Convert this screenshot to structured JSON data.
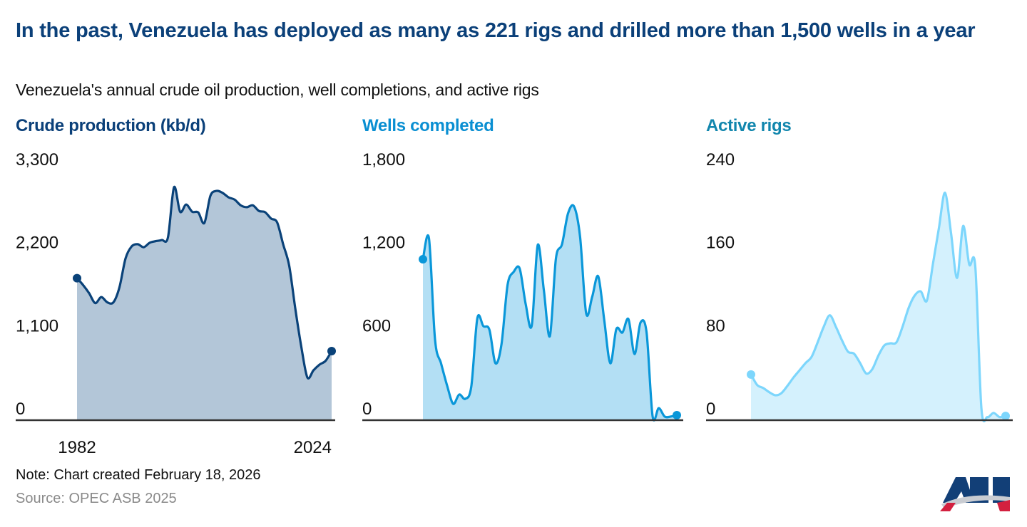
{
  "title": "In the past, Venezuela has deployed as many as 221 rigs and drilled more than 1,500 wells in a year",
  "subtitle": "Venezuela's annual crude oil production, well completions, and active rigs",
  "note": "Note: Chart created February 18, 2026",
  "source": "Source: OPEC ASB 2025",
  "logo_text": "API",
  "chart_data": [
    {
      "type": "area",
      "title": "Crude production (kb/d)",
      "title_color": "#0b4079",
      "line_color": "#0a4279",
      "fill_color": "#b3c6d8",
      "x_range": [
        1982,
        2024
      ],
      "x_tick_labels": [
        "1982",
        "2024"
      ],
      "ylim": [
        0,
        3300
      ],
      "y_tick_labels": [
        "0",
        "1,100",
        "2,200",
        "3,300"
      ],
      "y_ticks": [
        0,
        1100,
        2200,
        3300
      ],
      "values": [
        1880,
        1790,
        1680,
        1550,
        1630,
        1560,
        1560,
        1760,
        2140,
        2300,
        2330,
        2290,
        2350,
        2370,
        2385,
        2420,
        3085,
        2760,
        2855,
        2760,
        2750,
        2610,
        2970,
        3035,
        3010,
        2950,
        2920,
        2845,
        2820,
        2845,
        2770,
        2755,
        2670,
        2620,
        2330,
        2045,
        1480,
        970,
        565,
        660,
        735,
        785,
        915
      ]
    },
    {
      "type": "area",
      "title": "Wells completed",
      "title_color": "#0a8fd2",
      "line_color": "#0a97d9",
      "fill_color": "#b3dff4",
      "x_range": [
        1982,
        2024
      ],
      "ylim": [
        0,
        1800
      ],
      "y_tick_labels": [
        "0",
        "600",
        "1,200",
        "1,800"
      ],
      "y_ticks": [
        0,
        600,
        1200,
        1800
      ],
      "values": [
        1162,
        1312,
        581,
        411,
        250,
        118,
        185,
        154,
        242,
        736,
        679,
        653,
        411,
        550,
        977,
        1070,
        1096,
        838,
        684,
        1265,
        941,
        607,
        1168,
        1270,
        1492,
        1543,
        1322,
        772,
        890,
        1039,
        720,
        411,
        658,
        633,
        730,
        478,
        705,
        633,
        26,
        87,
        26,
        26,
        36
      ]
    },
    {
      "type": "area",
      "title": "Active rigs",
      "title_color": "#1186ad",
      "line_color": "#7dd6fc",
      "fill_color": "#d4f1fd",
      "x_range": [
        1982,
        2024
      ],
      "ylim": [
        0,
        240
      ],
      "y_tick_labels": [
        "0",
        "80",
        "160",
        "240"
      ],
      "y_ticks": [
        0,
        80,
        160,
        240
      ],
      "values": [
        44,
        34,
        31,
        27,
        24,
        26,
        33,
        41,
        48,
        55,
        61,
        75,
        90,
        101,
        90,
        77,
        66,
        64,
        55,
        45,
        49,
        62,
        72,
        74,
        75,
        90,
        108,
        120,
        124,
        115,
        150,
        185,
        219,
        180,
        137,
        187,
        150,
        148,
        12,
        3,
        7,
        3,
        4
      ]
    }
  ]
}
